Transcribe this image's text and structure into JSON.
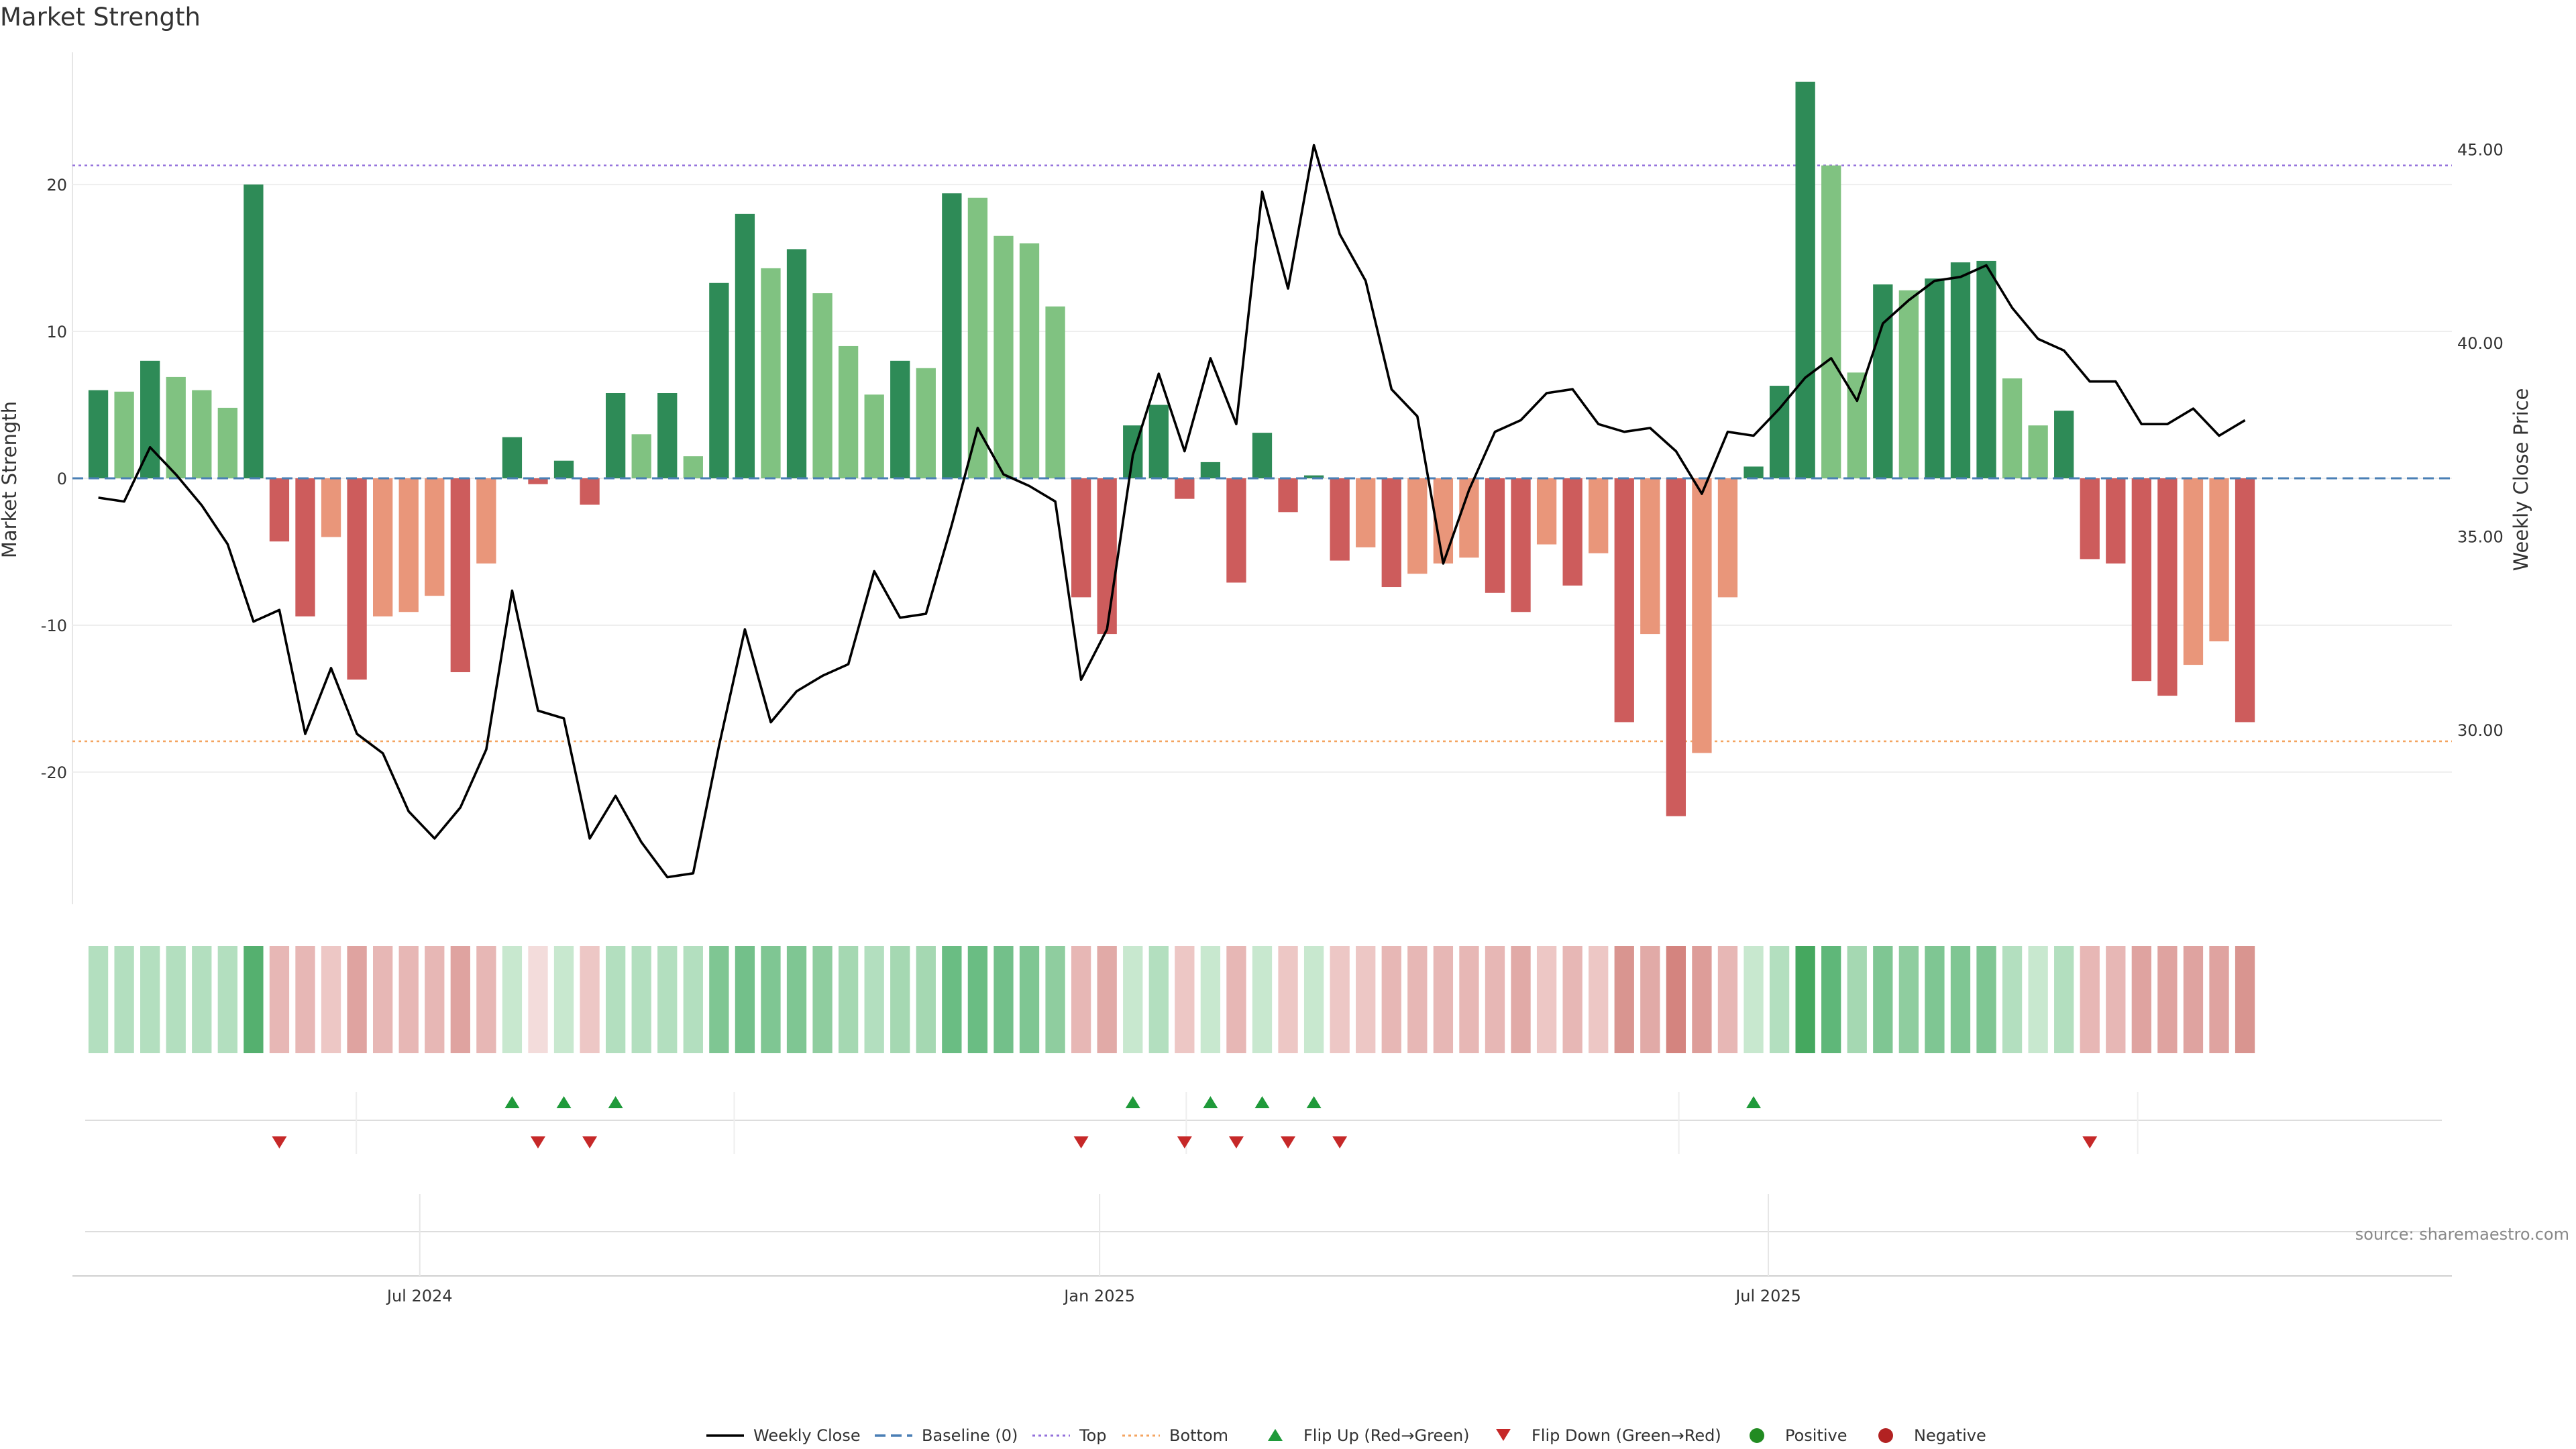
{
  "chart_data": {
    "type": "bar",
    "title": "Market Strength",
    "ylabel_left": "Market Strength",
    "ylabel_right": "Weekly Close Price",
    "source": "source: sharemaestro.com",
    "xlim": [
      "2024-03-29",
      "2026-01-02"
    ],
    "ylim_left": [
      -29,
      29
    ],
    "ylim_right": [
      25.5,
      47.5
    ],
    "left_ticks": [
      20,
      10,
      0,
      -10,
      -20
    ],
    "right_ticks": [
      45,
      40,
      35,
      30
    ],
    "right_tick_labels": [
      "45.00",
      "40.00",
      "35.00",
      "30.00"
    ],
    "x_ticks": [
      {
        "date": "2024-07-01",
        "label": "Jul 2024"
      },
      {
        "date": "2025-01-01",
        "label": "Jan 2025"
      },
      {
        "date": "2025-07-01",
        "label": "Jul 2025"
      }
    ],
    "start_week": "2024-04-05",
    "reference_lines": {
      "baseline": 0,
      "top": 21.3,
      "bottom": -17.9
    },
    "colors": {
      "pos_strong": "#2e8b57",
      "pos_light": "#80c281",
      "neg_strong": "#cd5c5c",
      "neg_light": "#e9967a",
      "close": "#000000",
      "baseline": "#4a7fb5",
      "top": "#9370db",
      "bottom": "#f4a460",
      "flip_up": "#1f9a3a",
      "flip_down": "#c62828",
      "positive_dot": "#228b22",
      "negative_dot": "#b22222"
    },
    "strength": [
      6,
      5.9,
      8,
      6.9,
      6,
      4.8,
      20,
      -4.3,
      -9.4,
      -4,
      -13.7,
      -9.4,
      -9.1,
      -8,
      -13.2,
      -5.8,
      2.8,
      -0.4,
      1.2,
      -1.8,
      5.8,
      3,
      5.8,
      1.5,
      13.3,
      18,
      14.3,
      15.6,
      12.6,
      9,
      5.7,
      8,
      7.5,
      19.4,
      19.1,
      16.5,
      16,
      11.7,
      -8.1,
      -10.6,
      3.6,
      5,
      -1.4,
      1.1,
      -7.1,
      3.1,
      -2.3,
      0.2,
      -5.6,
      -4.7,
      -7.4,
      -6.5,
      -5.8,
      -5.4,
      -7.8,
      -9.1,
      -4.5,
      -7.3,
      -5.1,
      -16.6,
      -10.6,
      -23,
      -18.7,
      -8.1,
      0.8,
      6.3,
      27,
      21.3,
      7.2,
      13.2,
      12.8,
      13.6,
      14.7,
      14.8,
      6.8,
      3.6,
      4.6,
      -5.5,
      -5.8,
      -13.8,
      -14.8,
      -12.7,
      -11.1,
      -16.6
    ],
    "strength_style": [
      "strong",
      "light",
      "strong",
      "light",
      "light",
      "light",
      "strong",
      "strong",
      "strong",
      "light",
      "strong",
      "light",
      "light",
      "light",
      "strong",
      "light",
      "strong",
      "strong",
      "strong",
      "strong",
      "strong",
      "light",
      "strong",
      "light",
      "strong",
      "strong",
      "light",
      "strong",
      "light",
      "light",
      "light",
      "strong",
      "light",
      "strong",
      "light",
      "light",
      "light",
      "light",
      "strong",
      "strong",
      "strong",
      "strong",
      "strong",
      "strong",
      "strong",
      "strong",
      "strong",
      "strong",
      "strong",
      "light",
      "strong",
      "light",
      "light",
      "light",
      "strong",
      "strong",
      "light",
      "strong",
      "light",
      "strong",
      "light",
      "strong",
      "light",
      "light",
      "strong",
      "strong",
      "strong",
      "light",
      "light",
      "strong",
      "light",
      "strong",
      "strong",
      "strong",
      "light",
      "light",
      "strong",
      "strong",
      "strong",
      "strong",
      "strong",
      "light",
      "light",
      "strong"
    ],
    "weekly_close": [
      36,
      35.9,
      37.3,
      36.6,
      35.8,
      34.8,
      32.8,
      33.1,
      29.9,
      31.6,
      29.9,
      29.4,
      27.9,
      27.2,
      28,
      29.5,
      33.6,
      30.5,
      30.3,
      27.2,
      28.3,
      27.1,
      26.2,
      26.3,
      29.6,
      32.6,
      30.2,
      31,
      31.4,
      31.7,
      34.1,
      32.9,
      33,
      35.3,
      37.8,
      36.6,
      36.3,
      35.9,
      31.3,
      32.6,
      37.1,
      39.2,
      37.2,
      39.6,
      37.9,
      43.9,
      41.4,
      45.1,
      42.8,
      41.6,
      38.8,
      38.1,
      34.3,
      36.2,
      37.7,
      38,
      38.7,
      38.8,
      37.9,
      37.7,
      37.8,
      37.2,
      36.1,
      37.7,
      37.6,
      38.3,
      39.1,
      39.6,
      38.5,
      40.5,
      41.1,
      41.6,
      41.7,
      42,
      40.9,
      40.1,
      39.8,
      39,
      39,
      37.9,
      37.9,
      38.3,
      37.6,
      38
    ],
    "flip_up_weeks": [
      16,
      18,
      20,
      40,
      43,
      45,
      47,
      64
    ],
    "flip_down_weeks": [
      7,
      17,
      19,
      38,
      42,
      44,
      46,
      48,
      77
    ],
    "state_row": [
      {
        "c": "#b3dfbf"
      },
      {
        "c": "#b3dfbf"
      },
      {
        "c": "#b3dfbf"
      },
      {
        "c": "#b3dfbf"
      },
      {
        "c": "#b3dfbf"
      },
      {
        "c": "#b3dfbf"
      },
      {
        "c": "#55b06f"
      },
      {
        "c": "#e7b7b5"
      },
      {
        "c": "#e7b7b5"
      },
      {
        "c": "#edc7c5"
      },
      {
        "c": "#dfa3a0"
      },
      {
        "c": "#e7b7b5"
      },
      {
        "c": "#e7b7b5"
      },
      {
        "c": "#e7b7b5"
      },
      {
        "c": "#dfa3a0"
      },
      {
        "c": "#e7b7b5"
      },
      {
        "c": "#c8e8cf"
      },
      {
        "c": "#f3dcdb"
      },
      {
        "c": "#c8e8cf"
      },
      {
        "c": "#edc7c5"
      },
      {
        "c": "#b3dfbf"
      },
      {
        "c": "#b3dfbf"
      },
      {
        "c": "#b3dfbf"
      },
      {
        "c": "#b3dfbf"
      },
      {
        "c": "#7fc693"
      },
      {
        "c": "#73c08a"
      },
      {
        "c": "#7fc693"
      },
      {
        "c": "#7fc693"
      },
      {
        "c": "#8fcd9f"
      },
      {
        "c": "#a5d8b2"
      },
      {
        "c": "#b3dfbf"
      },
      {
        "c": "#a5d8b2"
      },
      {
        "c": "#a5d8b2"
      },
      {
        "c": "#6abd83"
      },
      {
        "c": "#6abd83"
      },
      {
        "c": "#73c08a"
      },
      {
        "c": "#7fc693"
      },
      {
        "c": "#8fcd9f"
      },
      {
        "c": "#e7b7b5"
      },
      {
        "c": "#e1aaa7"
      },
      {
        "c": "#c8e8cf"
      },
      {
        "c": "#b3dfbf"
      },
      {
        "c": "#edc7c5"
      },
      {
        "c": "#c8e8cf"
      },
      {
        "c": "#e7b7b5"
      },
      {
        "c": "#c8e8cf"
      },
      {
        "c": "#edc7c5"
      },
      {
        "c": "#c8e8cf"
      },
      {
        "c": "#edc7c5"
      },
      {
        "c": "#edc7c5"
      },
      {
        "c": "#e7b7b5"
      },
      {
        "c": "#e7b7b5"
      },
      {
        "c": "#e7b7b5"
      },
      {
        "c": "#e7b7b5"
      },
      {
        "c": "#e7b7b5"
      },
      {
        "c": "#e1aaa7"
      },
      {
        "c": "#edc7c5"
      },
      {
        "c": "#e7b7b5"
      },
      {
        "c": "#edc7c5"
      },
      {
        "c": "#d99590"
      },
      {
        "c": "#e1aaa7"
      },
      {
        "c": "#d4847f"
      },
      {
        "c": "#dd9d99"
      },
      {
        "c": "#e7b7b5"
      },
      {
        "c": "#c8e8cf"
      },
      {
        "c": "#b3dfbf"
      },
      {
        "c": "#45a85f"
      },
      {
        "c": "#5fb779"
      },
      {
        "c": "#a5d8b2"
      },
      {
        "c": "#7fc693"
      },
      {
        "c": "#8fcd9f"
      },
      {
        "c": "#7fc693"
      },
      {
        "c": "#7fc693"
      },
      {
        "c": "#7fc693"
      },
      {
        "c": "#b3dfbf"
      },
      {
        "c": "#c8e8cf"
      },
      {
        "c": "#b3dfbf"
      },
      {
        "c": "#e7b7b5"
      },
      {
        "c": "#e7b7b5"
      },
      {
        "c": "#dfa3a0"
      },
      {
        "c": "#dfa3a0"
      },
      {
        "c": "#dfa3a0"
      },
      {
        "c": "#dfa3a0"
      },
      {
        "c": "#d99590"
      }
    ],
    "legend": [
      {
        "label": "Weekly Close",
        "kind": "line-solid",
        "color": "#000000"
      },
      {
        "label": "Baseline (0)",
        "kind": "line-dash",
        "color": "#4a7fb5"
      },
      {
        "label": "Top",
        "kind": "line-dot",
        "color": "#9370db"
      },
      {
        "label": "Bottom",
        "kind": "line-dot",
        "color": "#f4a460"
      },
      {
        "label": "Flip Up (Red→Green)",
        "kind": "tri-up",
        "color": "#1f9a3a"
      },
      {
        "label": "Flip Down (Green→Red)",
        "kind": "tri-down",
        "color": "#c62828"
      },
      {
        "label": "Positive",
        "kind": "dot",
        "color": "#228b22"
      },
      {
        "label": "Negative",
        "kind": "dot",
        "color": "#b22222"
      }
    ]
  }
}
